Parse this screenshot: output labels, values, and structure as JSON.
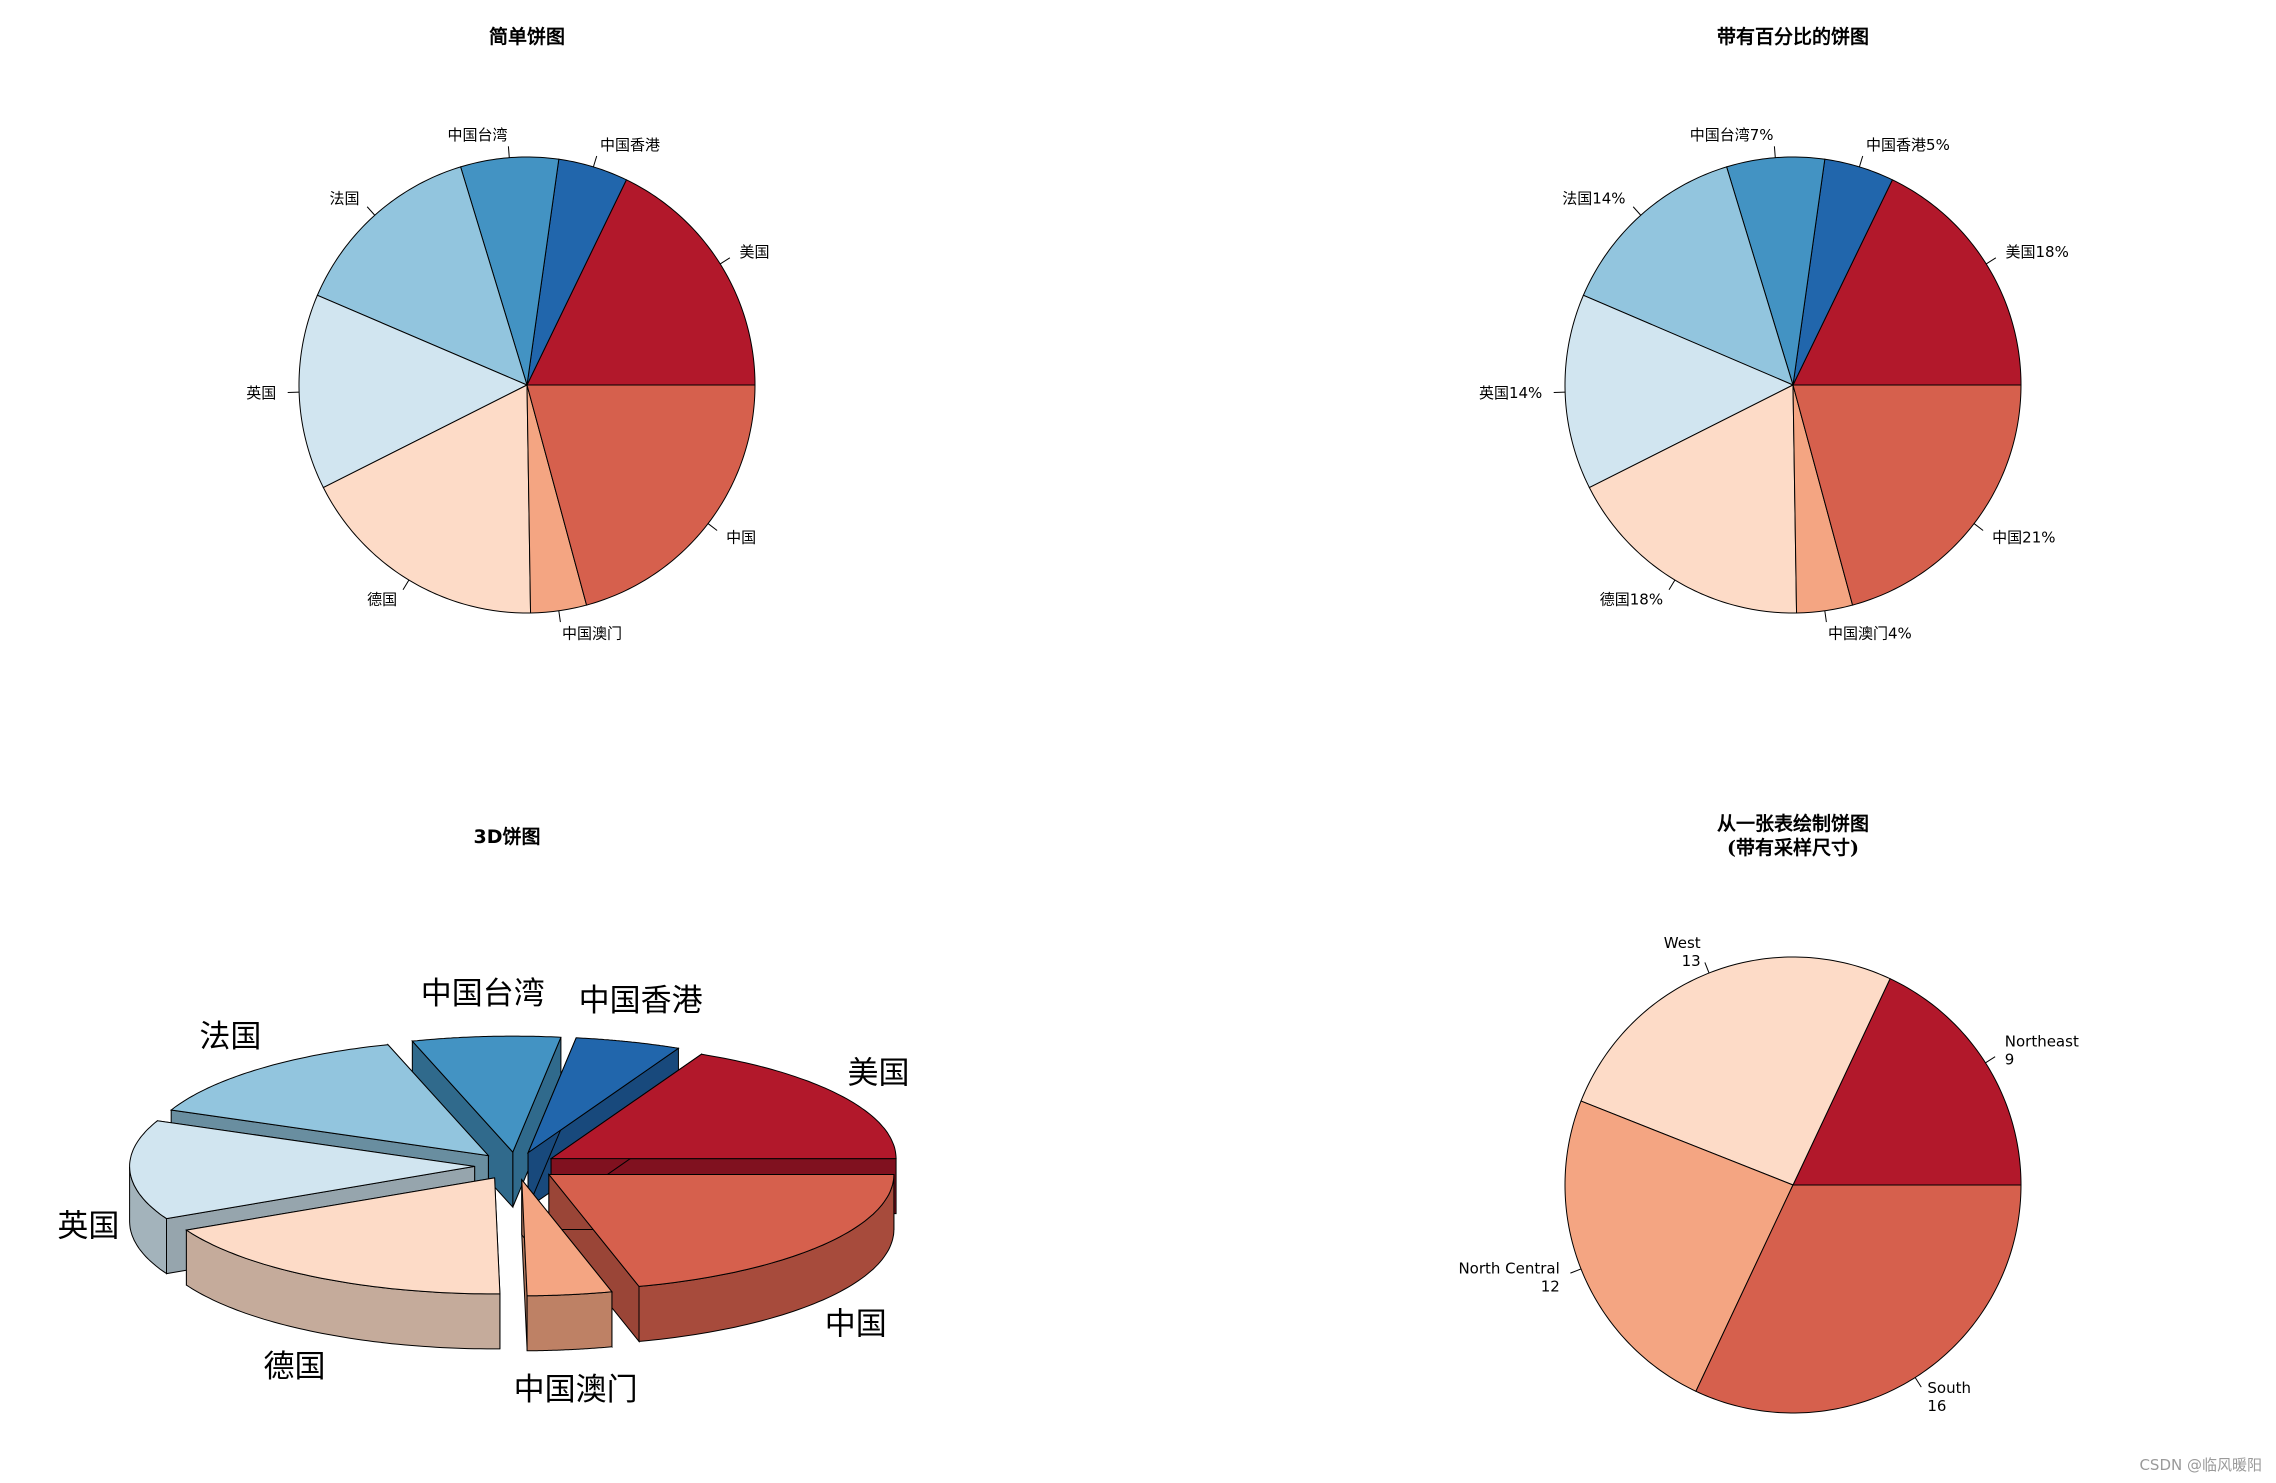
{
  "chart_data": [
    {
      "type": "pie",
      "title": "简单饼图",
      "labels": [
        "美国",
        "中国香港",
        "中国台湾",
        "法国",
        "英国",
        "德国",
        "中国澳门",
        "中国"
      ],
      "values": [
        18,
        5,
        7,
        14,
        14,
        18,
        4,
        21
      ],
      "colors": [
        "#B2182B",
        "#2166AC",
        "#4393C3",
        "#92C5DE",
        "#D1E5F0",
        "#FDDBC7",
        "#F4A582",
        "#D6604D"
      ]
    },
    {
      "type": "pie",
      "title": "带有百分比的饼图",
      "labels": [
        "美国18%",
        "中国香港5%",
        "中国台湾7%",
        "法国14%",
        "英国14%",
        "德国18%",
        "中国澳门4%",
        "中国21%"
      ],
      "values": [
        18,
        5,
        7,
        14,
        14,
        18,
        4,
        21
      ],
      "colors": [
        "#B2182B",
        "#2166AC",
        "#4393C3",
        "#92C5DE",
        "#D1E5F0",
        "#FDDBC7",
        "#F4A582",
        "#D6604D"
      ]
    },
    {
      "type": "pie",
      "title": "3D饼图",
      "style": "3d-exploded",
      "labels": [
        "美国",
        "中国香港",
        "中国台湾",
        "法国",
        "英国",
        "德国",
        "中国澳门",
        "中国"
      ],
      "values": [
        18,
        5,
        7,
        14,
        14,
        18,
        4,
        21
      ],
      "colors": [
        "#B2182B",
        "#2166AC",
        "#4393C3",
        "#92C5DE",
        "#D1E5F0",
        "#FDDBC7",
        "#F4A582",
        "#D6604D"
      ]
    },
    {
      "type": "pie",
      "title": [
        "从一张表绘制饼图",
        "(带有采样尺寸)"
      ],
      "labels": [
        [
          "Northeast",
          "9"
        ],
        [
          "West",
          "13"
        ],
        [
          "North Central",
          "12"
        ],
        [
          "South",
          "16"
        ]
      ],
      "values": [
        9,
        13,
        12,
        16
      ],
      "colors": [
        "#B2182B",
        "#FDDBC7",
        "#F4A582",
        "#D6604D"
      ]
    }
  ],
  "watermark": "CSDN @临风暖阳"
}
